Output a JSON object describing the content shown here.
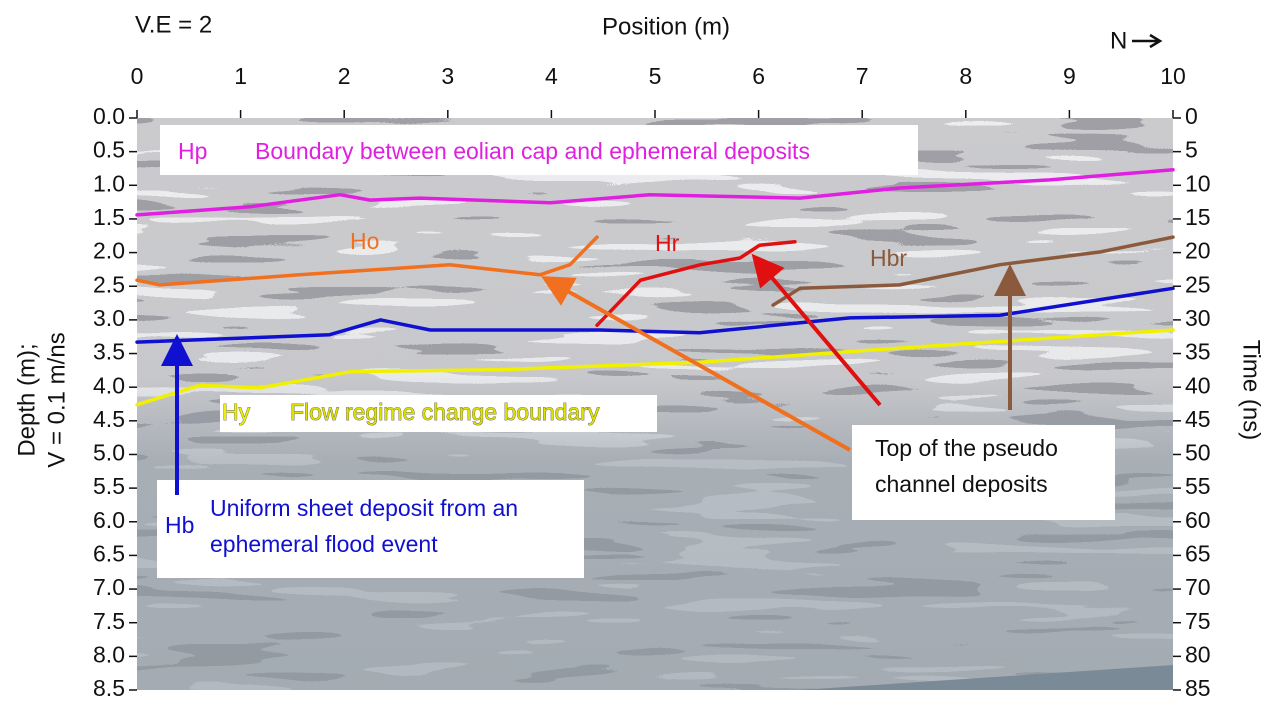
{
  "chart_data": {
    "type": "line",
    "annotation": "V.E = 2",
    "x_label": "Position (m)",
    "north_label": "N",
    "y_label": [
      "Depth (m);",
      "V = 0.1 m/ns"
    ],
    "y2_label": "Time (ns)",
    "xlim": [
      0,
      10
    ],
    "xticks": [
      0,
      1,
      2,
      3,
      4,
      5,
      6,
      7,
      8,
      9,
      10
    ],
    "ylim": [
      0,
      8.5
    ],
    "yticks": [
      {
        "value": 0,
        "label": "0.0"
      },
      0.5,
      {
        "value": 1,
        "label": "1.0"
      },
      1.5,
      {
        "value": 2,
        "label": "2.0"
      },
      2.5,
      {
        "value": 3,
        "label": "3.0"
      },
      3.5,
      {
        "value": 4,
        "label": "4.0"
      },
      4.5,
      {
        "value": 5,
        "label": "5.0"
      },
      5.5,
      {
        "value": 6,
        "label": "6.0"
      },
      6.5,
      {
        "value": 7,
        "label": "7.0"
      },
      7.5,
      {
        "value": 8,
        "label": "8.0"
      },
      8.5
    ],
    "y2lim": [
      0,
      85
    ],
    "y2ticks": [
      0,
      5,
      10,
      15,
      20,
      25,
      30,
      35,
      40,
      45,
      50,
      55,
      60,
      65,
      70,
      75,
      80,
      85
    ],
    "series": [
      {
        "name": "Hp",
        "color": "#e020e0",
        "x": [
          0,
          1.09,
          1.96,
          2.25,
          2.73,
          3.99,
          4.95,
          6.4,
          7.36,
          8.81,
          10
        ],
        "values": [
          1.44,
          1.32,
          1.14,
          1.22,
          1.19,
          1.26,
          1.14,
          1.19,
          1.04,
          0.92,
          0.77
        ]
      },
      {
        "name": "Ho",
        "color": "#f07020",
        "x": [
          0,
          0.22,
          1.57,
          3.02,
          3.89,
          4.18,
          4.44
        ],
        "values": [
          2.41,
          2.48,
          2.33,
          2.18,
          2.33,
          2.18,
          1.77
        ]
      },
      {
        "name": "Hr",
        "color": "#e01010",
        "x": [
          4.44,
          4.86,
          5.44,
          5.82,
          6.01,
          6.35
        ],
        "values": [
          3.08,
          2.41,
          2.18,
          2.08,
          1.89,
          1.84
        ]
      },
      {
        "name": "Hbr",
        "color": "#8b5a3c",
        "x": [
          6.14,
          6.4,
          7.36,
          8.33,
          9.3,
          10
        ],
        "values": [
          2.78,
          2.53,
          2.48,
          2.18,
          1.99,
          1.77
        ]
      },
      {
        "name": "Hb",
        "color": "#1010d0",
        "x": [
          0,
          1.86,
          2.35,
          2.83,
          4.47,
          5.43,
          6.88,
          8.33,
          10
        ],
        "values": [
          3.33,
          3.22,
          3.0,
          3.15,
          3.15,
          3.19,
          2.97,
          2.93,
          2.53
        ]
      },
      {
        "name": "Hy",
        "color": "#f0f000",
        "x": [
          0,
          0.61,
          1.19,
          2.06,
          3.5,
          5.43,
          7.36,
          10
        ],
        "values": [
          4.26,
          3.97,
          4.01,
          3.77,
          3.74,
          3.63,
          3.42,
          3.15
        ]
      }
    ],
    "descriptions": [
      {
        "text": [
          "Boundary between eolian cap and ephemeral deposits"
        ],
        "color": "#e020e0"
      },
      {
        "text": [
          "Flow regime change boundary"
        ],
        "color": "#e0e000"
      },
      {
        "text": [
          "Uniform sheet deposit from an",
          "ephemeral flood event"
        ],
        "color": "#1010d0"
      },
      {
        "text": [
          "Top of the pseudo",
          "channel deposits"
        ],
        "color": "#111111"
      }
    ]
  }
}
